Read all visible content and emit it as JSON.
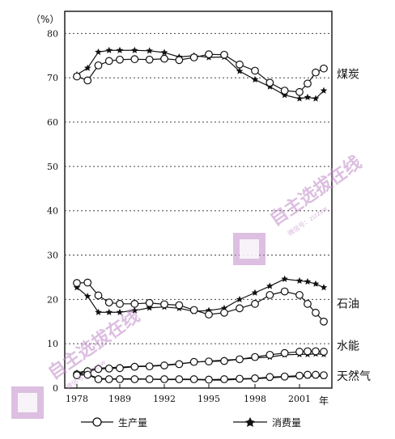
{
  "chart_data": {
    "type": "line",
    "ylabel": "（%）",
    "xunit": "年",
    "ylim": [
      0,
      85
    ],
    "yticks": [
      0,
      10,
      20,
      30,
      40,
      50,
      60,
      70,
      80
    ],
    "xlim": [
      1978,
      2005
    ],
    "xticks": [
      1978,
      1989,
      1992,
      1995,
      1998,
      2001
    ],
    "grid": "horizontal-dotted",
    "series_style": {
      "production": {
        "marker": "open-circle",
        "label": "生产量"
      },
      "consumption": {
        "marker": "star",
        "label": "消费量"
      }
    },
    "legend": [
      "生产量",
      "消费量"
    ],
    "groups": [
      {
        "label": "煤炭",
        "production": {
          "x": [
            1978,
            1980,
            1985,
            1987,
            1989,
            1990,
            1991,
            1992,
            1993,
            1994,
            1995,
            1996,
            1997,
            1998,
            1999,
            2000,
            2001,
            2002,
            2003,
            2004
          ],
          "y": [
            70.3,
            69.4,
            72.8,
            73.8,
            74.1,
            74.2,
            74.1,
            74.3,
            74.0,
            74.6,
            75.3,
            75.2,
            73.0,
            71.6,
            68.9,
            67.1,
            66.8,
            68.7,
            71.2,
            72.1
          ]
        },
        "consumption": {
          "x": [
            1978,
            1980,
            1985,
            1987,
            1989,
            1990,
            1991,
            1992,
            1993,
            1994,
            1995,
            1996,
            1997,
            1998,
            1999,
            2000,
            2001,
            2002,
            2003,
            2004
          ],
          "y": [
            70.7,
            72.2,
            75.8,
            76.2,
            76.2,
            76.2,
            76.1,
            75.7,
            74.7,
            75.0,
            74.6,
            74.7,
            71.5,
            69.6,
            68.0,
            66.1,
            65.3,
            65.6,
            65.3,
            67.1
          ]
        }
      },
      {
        "label": "石油",
        "production": {
          "x": [
            1978,
            1980,
            1985,
            1987,
            1989,
            1990,
            1991,
            1992,
            1993,
            1994,
            1995,
            1996,
            1997,
            1998,
            1999,
            2000,
            2001,
            2002,
            2003,
            2004
          ],
          "y": [
            23.7,
            23.8,
            20.9,
            19.3,
            19.0,
            19.0,
            19.2,
            18.9,
            18.7,
            17.6,
            16.6,
            17.0,
            18.0,
            19.0,
            21.0,
            21.8,
            21.0,
            19.0,
            17.0,
            15.0
          ]
        },
        "consumption": {
          "x": [
            1978,
            1980,
            1985,
            1987,
            1989,
            1990,
            1991,
            1992,
            1993,
            1994,
            1995,
            1996,
            1997,
            1998,
            1999,
            2000,
            2001,
            2002,
            2003,
            2004
          ],
          "y": [
            22.7,
            20.7,
            17.1,
            17.1,
            17.1,
            17.5,
            18.1,
            18.3,
            18.0,
            17.3,
            17.5,
            18.0,
            20.0,
            21.5,
            23.0,
            24.6,
            24.2,
            24.0,
            23.5,
            22.7
          ]
        }
      },
      {
        "label": "水能",
        "production": {
          "x": [
            1978,
            1980,
            1985,
            1987,
            1989,
            1990,
            1991,
            1992,
            1993,
            1994,
            1995,
            1996,
            1997,
            1998,
            1999,
            2000,
            2001,
            2002,
            2003,
            2004
          ],
          "y": [
            3.1,
            3.8,
            4.3,
            4.4,
            4.5,
            4.8,
            4.9,
            5.1,
            5.4,
            5.9,
            6.0,
            6.1,
            6.5,
            7.0,
            7.5,
            7.9,
            8.2,
            8.3,
            8.3,
            8.2
          ]
        },
        "consumption": {
          "x": [
            1978,
            1980,
            1985,
            1987,
            1989,
            1990,
            1991,
            1992,
            1993,
            1994,
            1995,
            1996,
            1997,
            1998,
            1999,
            2000,
            2001,
            2002,
            2003,
            2004
          ],
          "y": [
            3.4,
            4.0,
            4.5,
            4.6,
            4.7,
            4.9,
            5.0,
            5.2,
            5.5,
            5.8,
            6.1,
            6.3,
            6.5,
            6.8,
            7.0,
            7.5,
            7.6,
            7.6,
            7.7,
            7.6
          ]
        }
      },
      {
        "label": "天然气",
        "production": {
          "x": [
            1978,
            1980,
            1985,
            1987,
            1989,
            1990,
            1991,
            1992,
            1993,
            1994,
            1995,
            1996,
            1997,
            1998,
            1999,
            2000,
            2001,
            2002,
            2003,
            2004
          ],
          "y": [
            2.9,
            3.0,
            2.0,
            2.0,
            2.0,
            2.0,
            2.0,
            2.0,
            2.0,
            2.0,
            1.9,
            2.0,
            2.1,
            2.2,
            2.5,
            2.6,
            2.8,
            3.0,
            3.0,
            2.9
          ]
        },
        "consumption": {
          "x": [
            1978,
            1980,
            1985,
            1987,
            1989,
            1990,
            1991,
            1992,
            1993,
            1994,
            1995,
            1996,
            1997,
            1998,
            1999,
            2000,
            2001,
            2002,
            2003,
            2004
          ],
          "y": [
            3.2,
            3.1,
            2.2,
            2.1,
            2.1,
            2.1,
            2.0,
            1.9,
            1.9,
            1.9,
            1.8,
            1.8,
            2.0,
            2.1,
            2.3,
            2.5,
            2.6,
            2.7,
            2.7,
            2.6
          ]
        }
      }
    ]
  },
  "watermark": {
    "text": "自主选拔在线",
    "sub": "微信号：zizzsw",
    "color": "#c08ac8"
  }
}
